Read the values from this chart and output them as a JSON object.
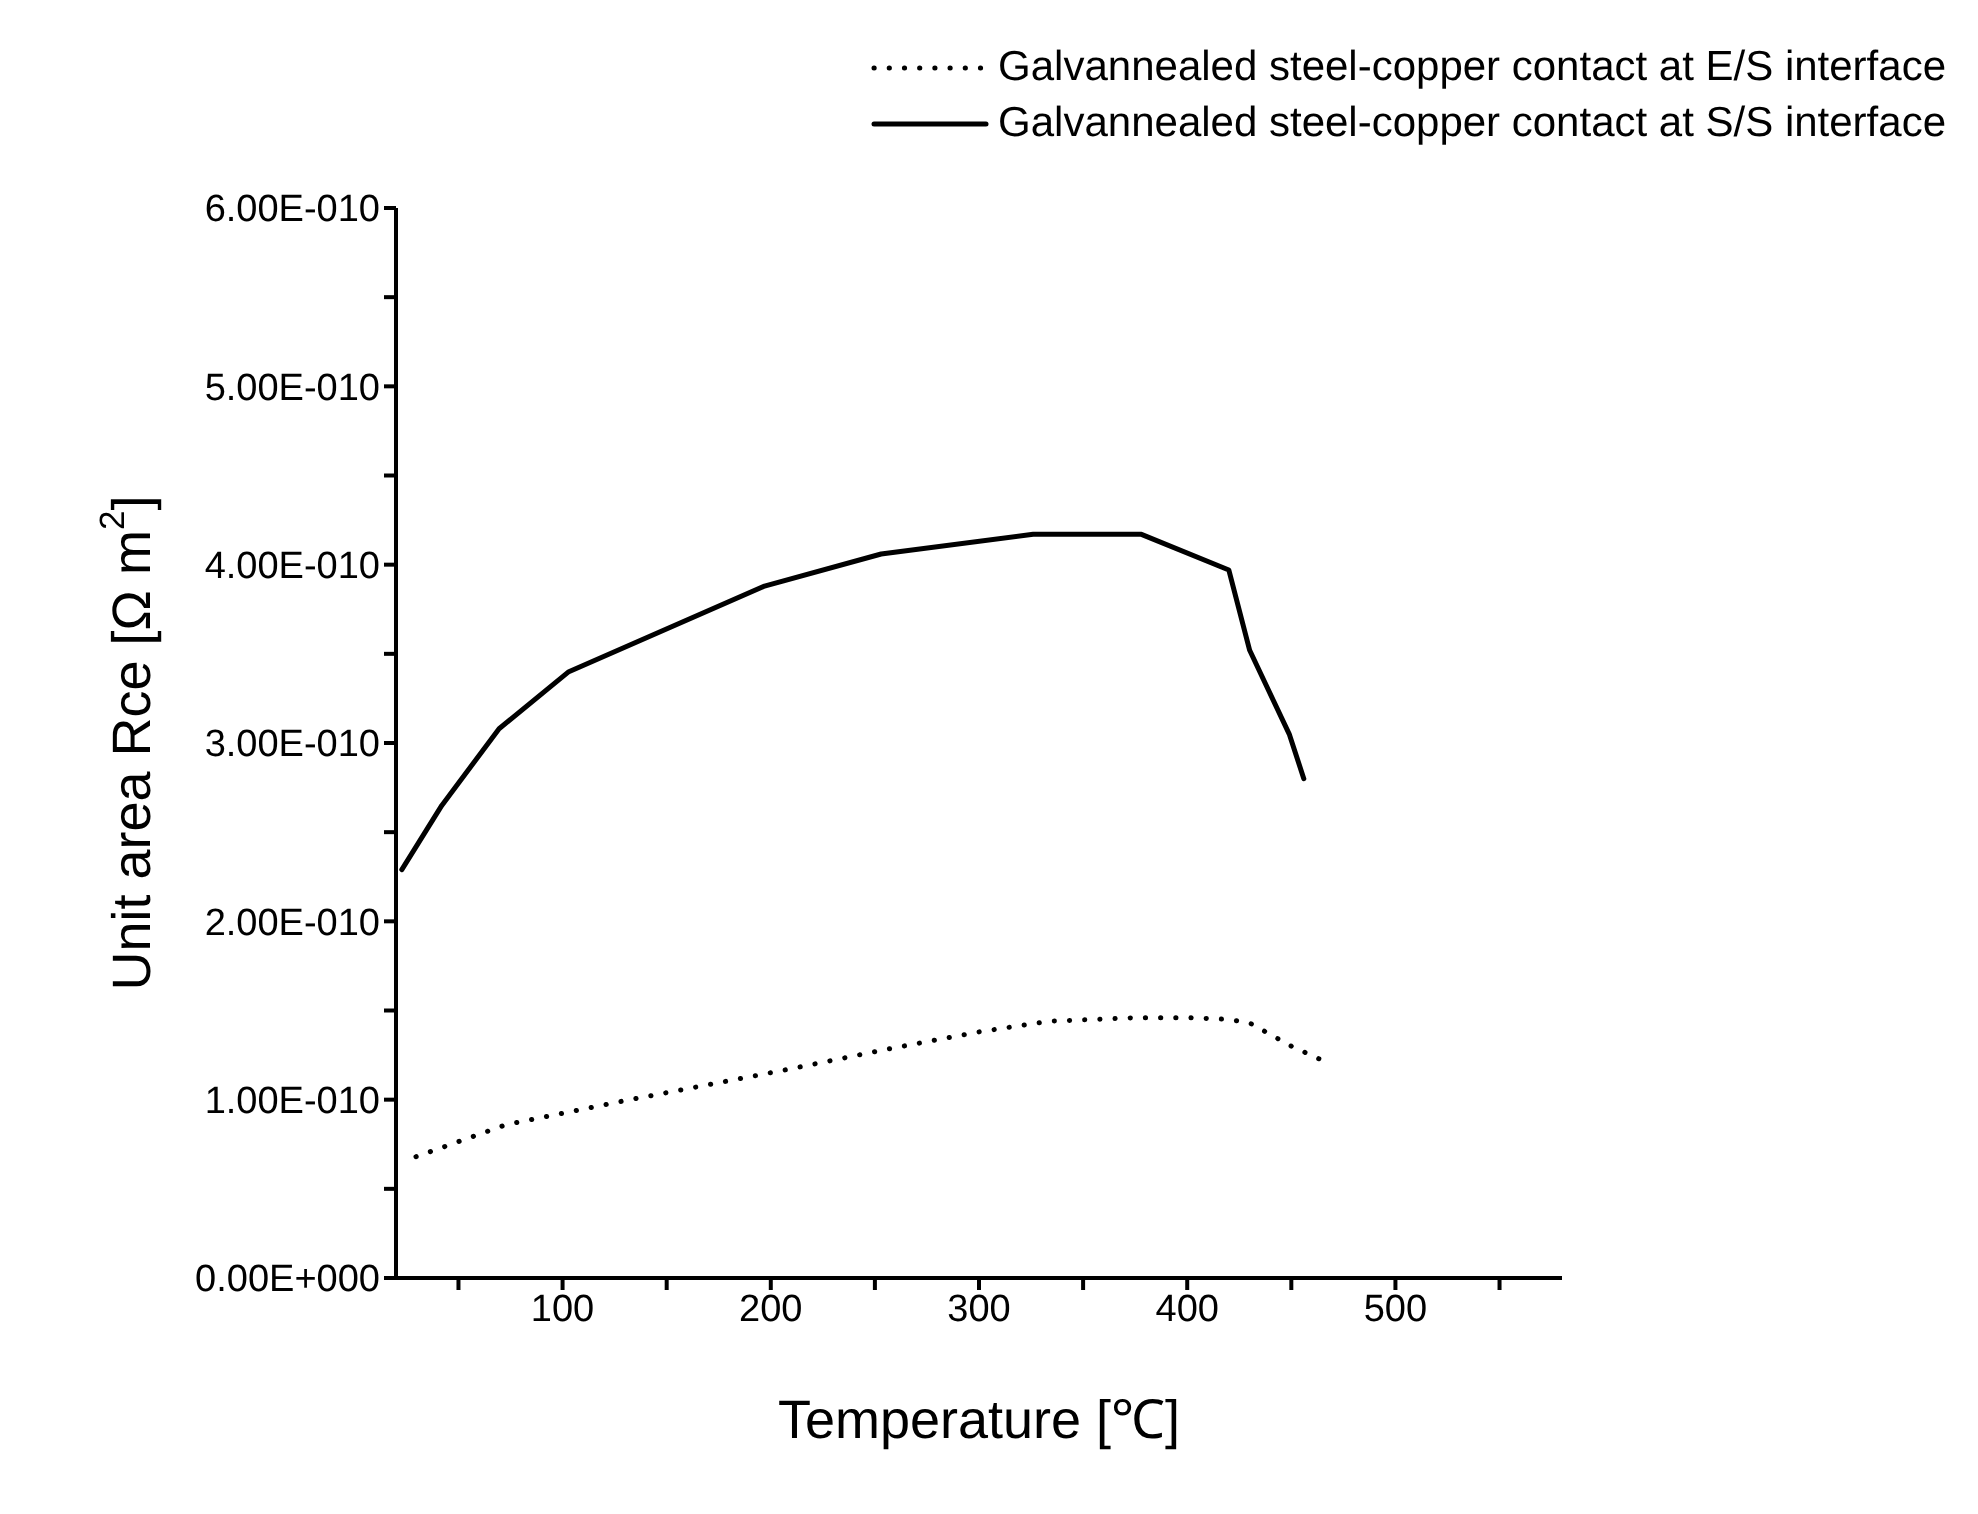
{
  "chart_data": {
    "type": "line",
    "xlabel": "Temperature [℃]",
    "ylabel": "Unit area Rce [Ω m$^{2}$]",
    "xlim": [
      20,
      580
    ],
    "xticks": [
      {
        "value": 50,
        "label": null
      },
      100,
      {
        "value": 150,
        "label": null
      },
      200,
      {
        "value": 250,
        "label": null
      },
      300,
      {
        "value": 350,
        "label": null
      },
      400,
      {
        "value": 450,
        "label": null
      },
      500,
      {
        "value": 550,
        "label": null
      }
    ],
    "ylim": [
      0,
      6e-10
    ],
    "yticks": [
      {
        "value": 0,
        "label": "0.00E+000"
      },
      {
        "value": 5e-11,
        "label": null
      },
      {
        "value": 1e-10,
        "label": "1.00E-010"
      },
      {
        "value": 1.5e-10,
        "label": null
      },
      {
        "value": 2e-10,
        "label": "2.00E-010"
      },
      {
        "value": 2.5e-10,
        "label": null
      },
      {
        "value": 3e-10,
        "label": "3.00E-010"
      },
      {
        "value": 3.5e-10,
        "label": null
      },
      {
        "value": 4e-10,
        "label": "4.00E-010"
      },
      {
        "value": 4.5e-10,
        "label": null
      },
      {
        "value": 5e-10,
        "label": "5.00E-010"
      },
      {
        "value": 5.5e-10,
        "label": null
      },
      {
        "value": 6e-10,
        "label": "6.00E-010"
      }
    ],
    "legend": "top right",
    "grid": false,
    "marker": "none",
    "series": [
      {
        "name": "Galvannealed steel-copper contact at E/S interface",
        "color": "#000000",
        "line_style": "dotted",
        "x": [
          29.6,
          73,
          128,
          204,
          259,
          300,
          334,
          376,
          400,
          420,
          430,
          450,
          465
        ],
        "values": [
          6.8e-11,
          8.6e-11,
          9.9e-11,
          1.16e-10,
          1.29e-10,
          1.38e-10,
          1.44e-10,
          1.46e-10,
          1.46e-10,
          1.45e-10,
          1.43e-10,
          1.3e-10,
          1.22e-10
        ]
      },
      {
        "name": "Galvannealed steel-copper contact at S/S interface",
        "color": "#000000",
        "line_style": "solid",
        "x": [
          22.8,
          42,
          69.5,
          103,
          197,
          253,
          326,
          378,
          420,
          430,
          449,
          456
        ],
        "values": [
          2.29e-10,
          2.65e-10,
          3.08e-10,
          3.4e-10,
          3.88e-10,
          4.06e-10,
          4.17e-10,
          4.17e-10,
          3.97e-10,
          3.52e-10,
          3.05e-10,
          2.8e-10
        ]
      }
    ]
  }
}
